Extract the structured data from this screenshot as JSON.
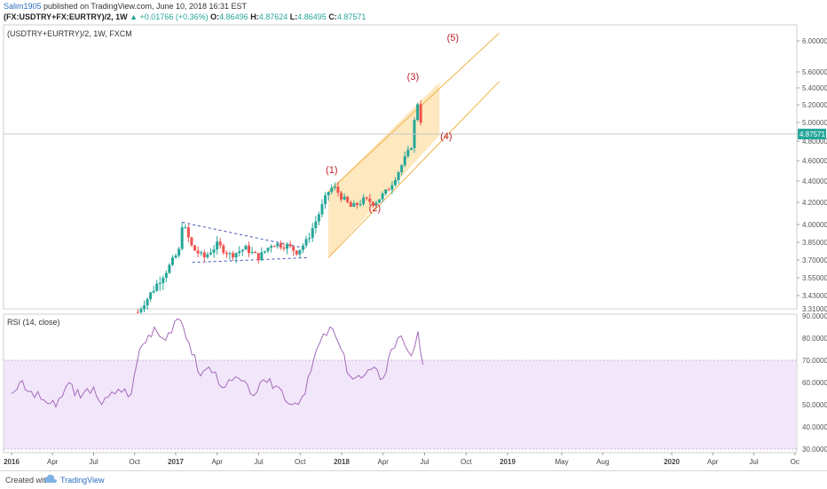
{
  "header": {
    "user": "Salim1905",
    "published_text": " published on TradingView.com, June 10, 2018 16:31 EST",
    "symbol": "(FX:USDTRY+FX:EURTRY)/2, 1W",
    "change_arrow": "▲",
    "change": "+0.01766 (+0.36%)",
    "o_label": "O:",
    "o_value": "4.86496",
    "h_label": "H:",
    "h_value": "4.87624",
    "l_label": "L:",
    "l_value": "4.86495",
    "c_label": "C:",
    "c_value": "4.87571"
  },
  "footer": {
    "created_with": "Created with",
    "brand": "TradingView"
  },
  "chart_data": [
    {
      "type": "candlestick",
      "title": "(USDTRY+EURTRY)/2, 1W, FXCM",
      "last_price_label": "4.87571",
      "last_price": 4.87571,
      "ylim": [
        3.31,
        6.0
      ],
      "y_ticks": [
        "3.31000",
        "3.43000",
        "3.55000",
        "3.70000",
        "3.85000",
        "4.00000",
        "4.20000",
        "4.40000",
        "4.60000",
        "4.80000",
        "5.00000",
        "5.20000",
        "5.40000",
        "5.60000",
        "6.00000"
      ],
      "x_ticks": [
        "2016",
        "Apr",
        "Jul",
        "Oct",
        "2017",
        "Apr",
        "Jul",
        "Oct",
        "2018",
        "Apr",
        "Jul",
        "Oct",
        "2019",
        "May",
        "Aug",
        "2020",
        "Apr",
        "Jul",
        "Oc"
      ],
      "up_color": "#26a69a",
      "down_color": "#ef5350",
      "anchors": [
        [
          2016.77,
          3.28
        ],
        [
          2016.85,
          3.45
        ],
        [
          2016.93,
          3.58
        ],
        [
          2017.02,
          3.78
        ],
        [
          2017.04,
          4.02
        ],
        [
          2017.1,
          3.8
        ],
        [
          2017.17,
          3.72
        ],
        [
          2017.25,
          3.83
        ],
        [
          2017.33,
          3.74
        ],
        [
          2017.42,
          3.8
        ],
        [
          2017.5,
          3.72
        ],
        [
          2017.58,
          3.84
        ],
        [
          2017.67,
          3.82
        ],
        [
          2017.73,
          3.77
        ],
        [
          2017.79,
          3.86
        ],
        [
          2017.85,
          4.05
        ],
        [
          2017.92,
          4.3
        ],
        [
          2017.95,
          4.35
        ],
        [
          2018.0,
          4.25
        ],
        [
          2018.06,
          4.15
        ],
        [
          2018.13,
          4.22
        ],
        [
          2018.2,
          4.2
        ],
        [
          2018.27,
          4.3
        ],
        [
          2018.31,
          4.4
        ],
        [
          2018.36,
          4.55
        ],
        [
          2018.4,
          4.68
        ],
        [
          2018.43,
          4.8
        ],
        [
          2018.45,
          5.3
        ],
        [
          2018.47,
          5.1
        ],
        [
          2018.49,
          4.88
        ]
      ],
      "pattern_lines": [
        {
          "name": "triangle-upper-line",
          "points": [
            [
              2017.04,
              4.02
            ],
            [
              2017.78,
              3.8
            ]
          ]
        },
        {
          "name": "triangle-lower-line",
          "points": [
            [
              2017.1,
              3.68
            ],
            [
              2017.8,
              3.72
            ]
          ]
        }
      ],
      "channel": {
        "color": "#fcd58a",
        "outer_upper": [
          [
            2017.92,
            4.3
          ],
          [
            2018.95,
            6.1
          ]
        ],
        "outer_lower": [
          [
            2017.92,
            3.72
          ],
          [
            2018.95,
            5.48
          ]
        ],
        "filled_from_x": 2017.92,
        "filled_to_x": 2018.59
      },
      "wave_labels": [
        {
          "text": "(1)",
          "x": 2017.94,
          "y": 4.48
        },
        {
          "text": "(2)",
          "x": 2018.2,
          "y": 4.12
        },
        {
          "text": "(3)",
          "x": 2018.43,
          "y": 5.5
        },
        {
          "text": "(4)",
          "x": 2018.63,
          "y": 4.82
        },
        {
          "text": "(5)",
          "x": 2018.67,
          "y": 6.0
        }
      ],
      "wave_color": "#c0202a"
    },
    {
      "type": "line",
      "title": "RSI (14, close)",
      "ylim": [
        27,
        91
      ],
      "y_ticks": [
        "30.0000",
        "40.0000",
        "50.0000",
        "60.0000",
        "70.0000",
        "80.0000",
        "90.0000"
      ],
      "band": [
        30,
        70
      ],
      "band_color": "#f2e6fb",
      "line_color": "#a46ab9",
      "anchors": [
        [
          2016.0,
          55
        ],
        [
          2016.05,
          60
        ],
        [
          2016.1,
          56
        ],
        [
          2016.2,
          52
        ],
        [
          2016.27,
          49
        ],
        [
          2016.35,
          60
        ],
        [
          2016.42,
          53
        ],
        [
          2016.5,
          58
        ],
        [
          2016.55,
          50
        ],
        [
          2016.65,
          57
        ],
        [
          2016.73,
          55
        ],
        [
          2016.78,
          75
        ],
        [
          2016.87,
          85
        ],
        [
          2016.92,
          80
        ],
        [
          2017.03,
          88
        ],
        [
          2017.08,
          78
        ],
        [
          2017.15,
          63
        ],
        [
          2017.2,
          67
        ],
        [
          2017.3,
          58
        ],
        [
          2017.38,
          62
        ],
        [
          2017.45,
          55
        ],
        [
          2017.55,
          60
        ],
        [
          2017.62,
          58
        ],
        [
          2017.7,
          50
        ],
        [
          2017.78,
          55
        ],
        [
          2017.85,
          75
        ],
        [
          2017.93,
          85
        ],
        [
          2017.98,
          78
        ],
        [
          2018.05,
          63
        ],
        [
          2018.12,
          62
        ],
        [
          2018.18,
          66
        ],
        [
          2018.25,
          62
        ],
        [
          2018.3,
          75
        ],
        [
          2018.36,
          81
        ],
        [
          2018.42,
          72
        ],
        [
          2018.46,
          83
        ],
        [
          2018.49,
          68
        ]
      ]
    }
  ]
}
